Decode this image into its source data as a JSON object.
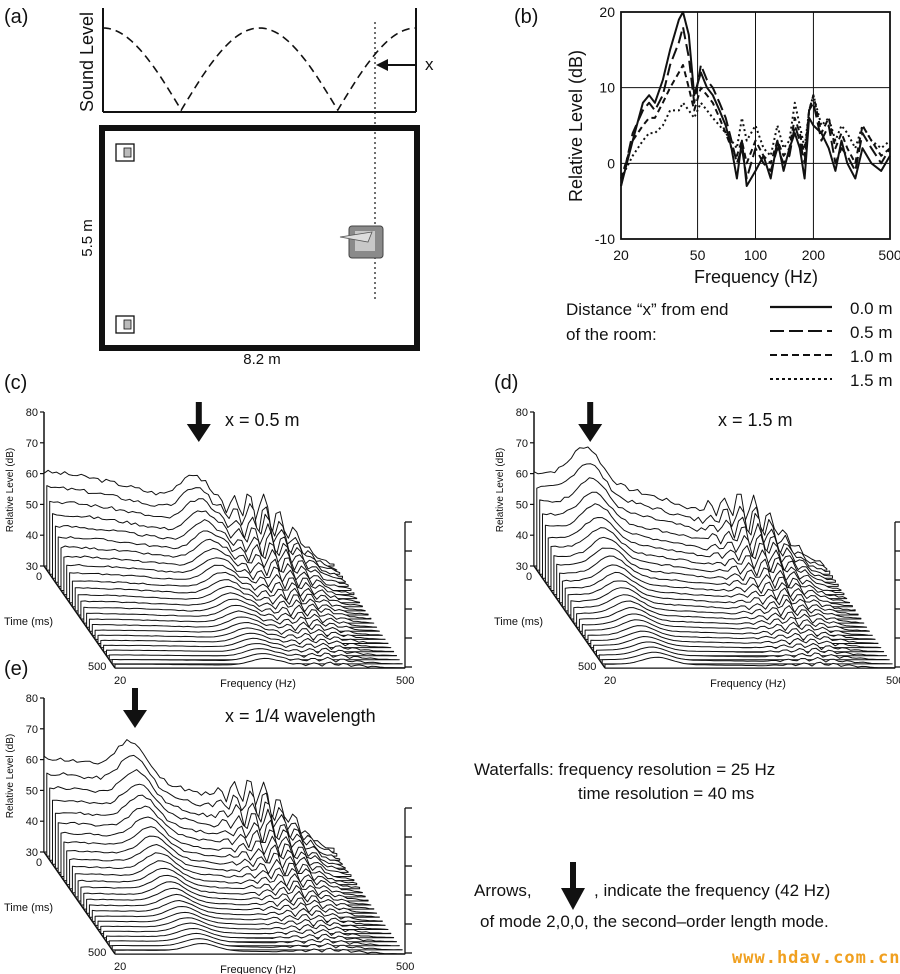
{
  "panels": {
    "a": {
      "label": "(a)",
      "ylabel": "Sound Level",
      "x_marker": "x",
      "room_height": "5.5 m",
      "room_width": "8.2 m"
    },
    "b": {
      "label": "(b)",
      "ylabel": "Relative Level (dB)",
      "xlabel": "Frequency (Hz)"
    },
    "c": {
      "label": "(c)",
      "title": "x = 0.5 m"
    },
    "d": {
      "label": "(d)",
      "title": "x = 1.5 m"
    },
    "e": {
      "label": "(e)",
      "title": "x = 1/4 wavelength"
    }
  },
  "waterfall_axes": {
    "ylabel": "Relative Level (dB)",
    "xlabel": "Frequency (Hz)",
    "tlabel": "Time (ms)",
    "yticks": [
      "80",
      "70",
      "60",
      "50",
      "40",
      "30"
    ],
    "t_start": "0",
    "t_end": "500",
    "f_start": "20",
    "f_end": "500"
  },
  "legend": {
    "title_line1": "Distance “x” from end",
    "title_line2": "of the room:",
    "entries": [
      "0.0 m",
      "0.5 m",
      "1.0 m",
      "1.5 m"
    ]
  },
  "notes": {
    "waterfalls_line1": "Waterfalls: frequency resolution = 25 Hz",
    "waterfalls_line2": "time resolution = 40 ms",
    "arrows_prefix": "Arrows,",
    "arrows_suffix": ", indicate the frequency (42 Hz)",
    "arrows_line2": "of mode 2,0,0, the second–order length mode."
  },
  "watermark": "www.hdav.com.cn",
  "chart_data": [
    {
      "type": "line",
      "panel": "b",
      "xlabel": "Frequency (Hz)",
      "ylabel": "Relative Level (dB)",
      "xscale": "log",
      "xlim": [
        20,
        500
      ],
      "ylim": [
        -10,
        20
      ],
      "xticks": [
        20,
        50,
        100,
        200,
        500
      ],
      "yticks": [
        -10,
        0,
        10,
        20
      ],
      "grid": true,
      "series": [
        {
          "name": "0.0 m",
          "dash": "solid",
          "x": [
            20,
            23,
            26,
            28,
            30,
            33,
            36,
            40,
            42,
            45,
            48,
            52,
            56,
            60,
            65,
            70,
            75,
            80,
            85,
            90,
            100,
            110,
            120,
            130,
            140,
            150,
            160,
            170,
            180,
            190,
            200,
            220,
            240,
            260,
            280,
            300,
            330,
            360,
            400,
            450,
            500
          ],
          "y": [
            -3,
            3,
            8,
            9,
            8,
            11,
            15,
            19,
            20,
            17,
            9,
            12,
            10,
            9,
            7,
            5,
            2,
            -2,
            3,
            -3,
            -1,
            1,
            -2,
            3,
            -1,
            2,
            4,
            2,
            -2,
            6,
            5,
            4,
            2,
            -1,
            3,
            0,
            -2,
            2,
            0,
            -1,
            1
          ]
        },
        {
          "name": "0.5 m",
          "dash": "long",
          "x": [
            20,
            23,
            26,
            28,
            30,
            33,
            36,
            40,
            42,
            45,
            48,
            52,
            56,
            60,
            65,
            70,
            75,
            80,
            85,
            90,
            100,
            110,
            120,
            130,
            140,
            150,
            160,
            170,
            180,
            190,
            200,
            220,
            240,
            260,
            280,
            300,
            330,
            360,
            400,
            450,
            500
          ],
          "y": [
            -3,
            4,
            7,
            8,
            7,
            9,
            13,
            16,
            18,
            14,
            8,
            13,
            11,
            10,
            8,
            6,
            3,
            0,
            2,
            -2,
            2,
            0,
            -1,
            2,
            0,
            1,
            5,
            3,
            0,
            7,
            8,
            3,
            5,
            0,
            2,
            1,
            -1,
            4,
            2,
            0,
            2
          ]
        },
        {
          "name": "1.0 m",
          "dash": "medium",
          "x": [
            20,
            23,
            26,
            28,
            30,
            33,
            36,
            40,
            42,
            45,
            48,
            52,
            56,
            60,
            65,
            70,
            75,
            80,
            85,
            90,
            100,
            110,
            120,
            130,
            140,
            150,
            160,
            170,
            180,
            190,
            200,
            220,
            240,
            260,
            280,
            300,
            330,
            360,
            400,
            450,
            500
          ],
          "y": [
            -2,
            3,
            5,
            6,
            6,
            8,
            10,
            12,
            13,
            10,
            7,
            10,
            9,
            8,
            6,
            4,
            2,
            1,
            3,
            0,
            3,
            1,
            0,
            3,
            1,
            2,
            6,
            4,
            1,
            7,
            9,
            4,
            6,
            2,
            4,
            2,
            0,
            5,
            3,
            1,
            2
          ]
        },
        {
          "name": "1.5 m",
          "dash": "dotted",
          "x": [
            20,
            23,
            26,
            28,
            30,
            33,
            36,
            40,
            42,
            45,
            48,
            52,
            56,
            60,
            65,
            70,
            75,
            80,
            85,
            90,
            100,
            110,
            120,
            130,
            140,
            150,
            160,
            170,
            180,
            190,
            200,
            220,
            240,
            260,
            280,
            300,
            330,
            360,
            400,
            450,
            500
          ],
          "y": [
            -2,
            1,
            3,
            4,
            4,
            5,
            7,
            7,
            8,
            7,
            6,
            8,
            7,
            6,
            5,
            4,
            3,
            2,
            6,
            3,
            5,
            2,
            1,
            5,
            2,
            3,
            8,
            5,
            2,
            7,
            9,
            5,
            6,
            3,
            5,
            4,
            2,
            5,
            3,
            2,
            3
          ]
        }
      ]
    },
    {
      "type": "line",
      "panel": "a",
      "ylabel": "Sound Level",
      "note": "cosine pressure distribution of the second-order length mode along the room",
      "series": [
        {
          "x": [
            0,
            0.25,
            0.5,
            0.75,
            1
          ],
          "y": [
            1,
            0,
            1,
            0,
            1
          ]
        }
      ]
    }
  ]
}
